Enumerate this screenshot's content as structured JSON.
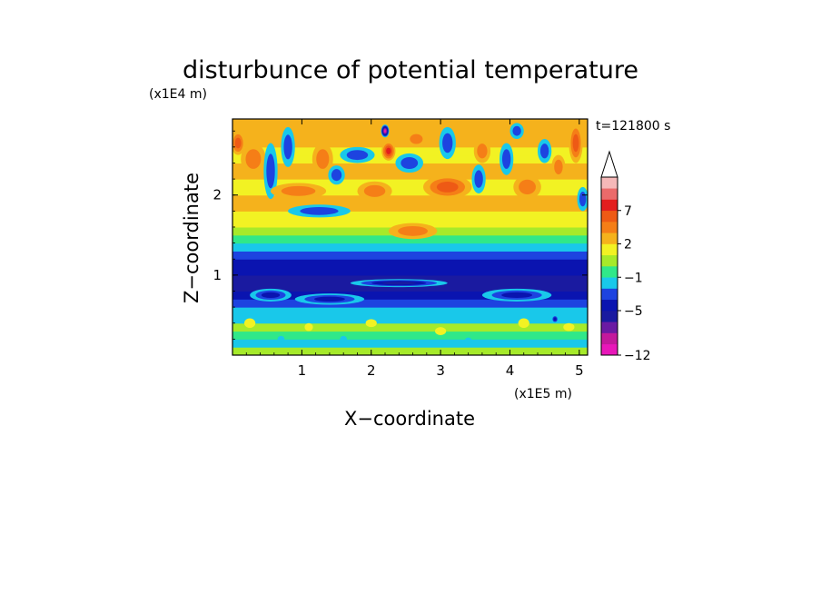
{
  "chart_data": {
    "type": "heatmap",
    "title": "disturbunce of potential temperature",
    "time_label": "t=121800 s",
    "xlabel": "X−coordinate",
    "ylabel": "Z−coordinate",
    "x_scale_label": "(x1E5 m)",
    "y_scale_label": "(x1E4 m)",
    "xlim": [
      0,
      5.12
    ],
    "ylim": [
      0,
      2.95
    ],
    "x_ticks": [
      {
        "value": 1,
        "label": "1"
      },
      {
        "value": 2,
        "label": "2"
      },
      {
        "value": 3,
        "label": "3"
      },
      {
        "value": 4,
        "label": "4"
      },
      {
        "value": 5,
        "label": "5"
      }
    ],
    "y_ticks": [
      {
        "value": 1,
        "label": "1"
      },
      {
        "value": 2,
        "label": "2"
      }
    ],
    "colorbar": {
      "extend": "max",
      "levels": [
        {
          "value": -12,
          "color": "#e817b9"
        },
        {
          "value": -11,
          "color": "#c3199c"
        },
        {
          "value": -9,
          "color": "#6a1aa3"
        },
        {
          "value": -7,
          "color": "#1a1aa0"
        },
        {
          "value": -5,
          "color": "#0a14b0"
        },
        {
          "value": -3,
          "color": "#1d43e0"
        },
        {
          "value": -2,
          "color": "#19c8ea"
        },
        {
          "value": -1,
          "color": "#30e889"
        },
        {
          "value": 0,
          "color": "#a6ea2a"
        },
        {
          "value": 1,
          "color": "#f2f223"
        },
        {
          "value": 2,
          "color": "#f5b21c"
        },
        {
          "value": 3,
          "color": "#f57e17"
        },
        {
          "value": 5,
          "color": "#ee5a15"
        },
        {
          "value": 7,
          "color": "#e31e1e"
        },
        {
          "value": 9,
          "color": "#eb6a6a"
        },
        {
          "value": 11,
          "color": "#f5b8b8"
        }
      ],
      "tick_labels": [
        {
          "value": 7,
          "label": "7"
        },
        {
          "value": 2,
          "label": "2"
        },
        {
          "value": -1,
          "label": "−1"
        },
        {
          "value": -5,
          "label": "−5"
        },
        {
          "value": -12,
          "label": "−12"
        }
      ]
    },
    "bands": [
      {
        "z": 0.05,
        "value": 0.4
      },
      {
        "z": 0.15,
        "value": -1.4
      },
      {
        "z": 0.25,
        "value": -0.6
      },
      {
        "z": 0.35,
        "value": 0.3
      },
      {
        "z": 0.45,
        "value": -1.5
      },
      {
        "z": 0.55,
        "value": -1.8
      },
      {
        "z": 0.65,
        "value": -2.5
      },
      {
        "z": 0.75,
        "value": -4.0
      },
      {
        "z": 0.85,
        "value": -5.6
      },
      {
        "z": 0.95,
        "value": -6.2
      },
      {
        "z": 1.05,
        "value": -5.0
      },
      {
        "z": 1.15,
        "value": -3.2
      },
      {
        "z": 1.25,
        "value": -2.4
      },
      {
        "z": 1.35,
        "value": -1.5
      },
      {
        "z": 1.45,
        "value": -0.5
      },
      {
        "z": 1.55,
        "value": 0.8
      },
      {
        "z": 1.65,
        "value": 1.4
      },
      {
        "z": 1.75,
        "value": 1.8
      },
      {
        "z": 1.85,
        "value": 2.2
      },
      {
        "z": 1.95,
        "value": 2.0
      },
      {
        "z": 2.05,
        "value": 1.6
      },
      {
        "z": 2.15,
        "value": 1.8
      },
      {
        "z": 2.25,
        "value": 2.4
      },
      {
        "z": 2.35,
        "value": 2.1
      },
      {
        "z": 2.45,
        "value": 1.6
      },
      {
        "z": 2.55,
        "value": 1.9
      },
      {
        "z": 2.65,
        "value": 2.3
      },
      {
        "z": 2.75,
        "value": 2.5
      },
      {
        "z": 2.85,
        "value": 2.2
      },
      {
        "z": 2.95,
        "value": 2.0
      }
    ],
    "features": [
      {
        "x": 0.08,
        "z": 2.65,
        "rx": 0.1,
        "rz": 0.15,
        "value": 6
      },
      {
        "x": 0.3,
        "z": 2.45,
        "rx": 0.18,
        "rz": 0.2,
        "value": 3.5
      },
      {
        "x": 0.55,
        "z": 2.3,
        "rx": 0.1,
        "rz": 0.35,
        "value": -3.5
      },
      {
        "x": 0.8,
        "z": 2.6,
        "rx": 0.1,
        "rz": 0.25,
        "value": -3.5
      },
      {
        "x": 0.95,
        "z": 2.05,
        "rx": 0.4,
        "rz": 0.1,
        "value": 3.5
      },
      {
        "x": 1.3,
        "z": 2.45,
        "rx": 0.15,
        "rz": 0.2,
        "value": 4
      },
      {
        "x": 1.5,
        "z": 2.25,
        "rx": 0.12,
        "rz": 0.12,
        "value": -3.5
      },
      {
        "x": 1.25,
        "z": 1.8,
        "rx": 0.45,
        "rz": 0.08,
        "value": -3.5
      },
      {
        "x": 1.8,
        "z": 2.5,
        "rx": 0.25,
        "rz": 0.1,
        "value": -3.5
      },
      {
        "x": 2.05,
        "z": 2.05,
        "rx": 0.25,
        "rz": 0.12,
        "value": 4.5
      },
      {
        "x": 2.2,
        "z": 2.8,
        "rx": 0.06,
        "rz": 0.08,
        "value": -12
      },
      {
        "x": 2.25,
        "z": 2.55,
        "rx": 0.1,
        "rz": 0.12,
        "value": 8
      },
      {
        "x": 2.55,
        "z": 2.4,
        "rx": 0.2,
        "rz": 0.12,
        "value": -3.5
      },
      {
        "x": 2.65,
        "z": 2.7,
        "rx": 0.15,
        "rz": 0.1,
        "value": 3.5
      },
      {
        "x": 2.6,
        "z": 1.55,
        "rx": 0.35,
        "rz": 0.1,
        "value": 4.5
      },
      {
        "x": 3.1,
        "z": 2.1,
        "rx": 0.35,
        "rz": 0.15,
        "value": 6
      },
      {
        "x": 3.1,
        "z": 2.65,
        "rx": 0.12,
        "rz": 0.2,
        "value": -3.5
      },
      {
        "x": 3.55,
        "z": 2.2,
        "rx": 0.1,
        "rz": 0.18,
        "value": -3.5
      },
      {
        "x": 3.6,
        "z": 2.55,
        "rx": 0.12,
        "rz": 0.15,
        "value": 3.5
      },
      {
        "x": 3.95,
        "z": 2.45,
        "rx": 0.1,
        "rz": 0.2,
        "value": -3.5
      },
      {
        "x": 4.1,
        "z": 2.8,
        "rx": 0.1,
        "rz": 0.1,
        "value": -3.5
      },
      {
        "x": 4.25,
        "z": 2.1,
        "rx": 0.2,
        "rz": 0.15,
        "value": 4.5
      },
      {
        "x": 4.5,
        "z": 2.55,
        "rx": 0.1,
        "rz": 0.15,
        "value": -3.5
      },
      {
        "x": 4.7,
        "z": 2.35,
        "rx": 0.1,
        "rz": 0.15,
        "value": 3.5
      },
      {
        "x": 4.95,
        "z": 2.65,
        "rx": 0.1,
        "rz": 0.25,
        "value": 6
      },
      {
        "x": 5.05,
        "z": 1.95,
        "rx": 0.08,
        "rz": 0.15,
        "value": -3.5
      },
      {
        "x": 0.55,
        "z": 0.75,
        "rx": 0.3,
        "rz": 0.08,
        "value": -6.5
      },
      {
        "x": 1.4,
        "z": 0.7,
        "rx": 0.5,
        "rz": 0.07,
        "value": -6.5
      },
      {
        "x": 2.4,
        "z": 0.9,
        "rx": 0.7,
        "rz": 0.05,
        "value": -7.5
      },
      {
        "x": 4.1,
        "z": 0.75,
        "rx": 0.5,
        "rz": 0.08,
        "value": -6.5
      },
      {
        "x": 0.25,
        "z": 0.4,
        "rx": 0.08,
        "rz": 0.06,
        "value": 1.5
      },
      {
        "x": 1.1,
        "z": 0.35,
        "rx": 0.06,
        "rz": 0.05,
        "value": 1.5
      },
      {
        "x": 2.0,
        "z": 0.4,
        "rx": 0.08,
        "rz": 0.05,
        "value": 1.5
      },
      {
        "x": 3.0,
        "z": 0.3,
        "rx": 0.08,
        "rz": 0.05,
        "value": 1.5
      },
      {
        "x": 4.2,
        "z": 0.4,
        "rx": 0.08,
        "rz": 0.06,
        "value": 1.5
      },
      {
        "x": 4.65,
        "z": 0.45,
        "rx": 0.05,
        "rz": 0.05,
        "value": -6.5
      },
      {
        "x": 4.85,
        "z": 0.35,
        "rx": 0.08,
        "rz": 0.05,
        "value": 1.5
      },
      {
        "x": 0.7,
        "z": 0.2,
        "rx": 0.05,
        "rz": 0.04,
        "value": -2.5
      },
      {
        "x": 1.6,
        "z": 0.2,
        "rx": 0.05,
        "rz": 0.04,
        "value": -2.5
      },
      {
        "x": 3.4,
        "z": 0.18,
        "rx": 0.05,
        "rz": 0.04,
        "value": -2.5
      }
    ]
  }
}
